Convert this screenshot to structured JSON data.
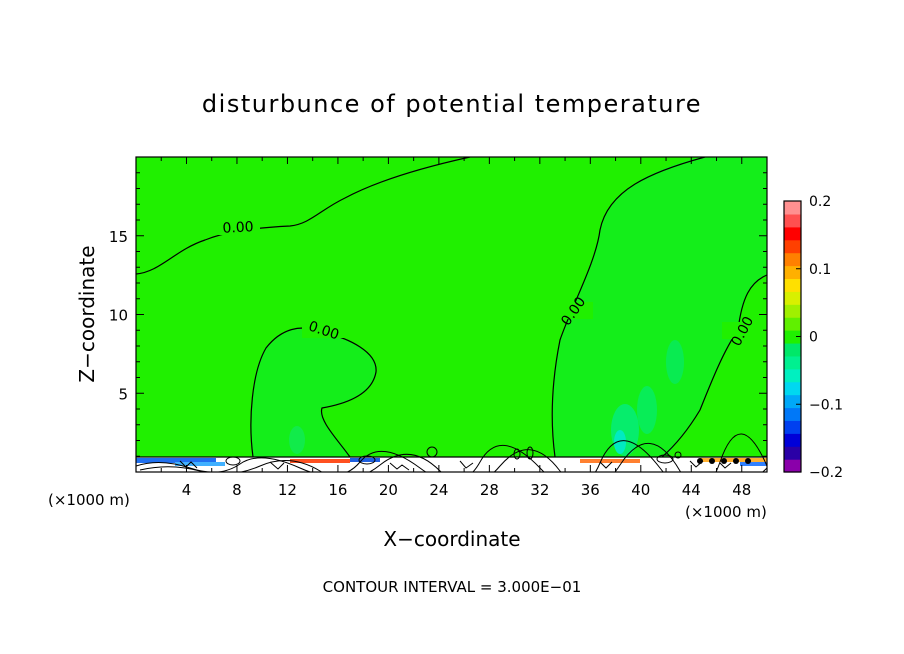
{
  "chart_data": {
    "type": "heatmap",
    "title": "disturbunce of potential temperature",
    "xlabel": "X−coordinate",
    "ylabel": "Z−coordinate",
    "x_unit_left": "(×1000 m)",
    "x_unit_right": "(×1000 m)",
    "xlim": [
      0,
      50
    ],
    "ylim": [
      0,
      20
    ],
    "x_ticks": [
      4,
      8,
      12,
      16,
      20,
      24,
      28,
      32,
      36,
      40,
      44,
      48
    ],
    "x_tick_labels": [
      "4",
      "8",
      "12",
      "16",
      "20",
      "24",
      "28",
      "32",
      "36",
      "40",
      "44",
      "48"
    ],
    "y_ticks": [
      5,
      10,
      15
    ],
    "y_tick_labels": [
      "5",
      "10",
      "15"
    ],
    "contour_labels": [
      "0.00",
      "0.00",
      "0.00",
      "0.00"
    ],
    "footnote": "CONTOUR INTERVAL = 3.000E−01",
    "colorbar": {
      "min": -0.2,
      "max": 0.2,
      "tick_values": [
        0.2,
        0.1,
        0,
        -0.1,
        -0.2
      ],
      "tick_labels": [
        "0.2",
        "0.1",
        "0",
        "−0.1",
        "−0.2"
      ],
      "colors": [
        "#8a00aa",
        "#2a00a6",
        "#0000d8",
        "#0040f0",
        "#0078f8",
        "#00a8f8",
        "#00d8f0",
        "#00f0c0",
        "#00f090",
        "#00e868",
        "#20f000",
        "#60f000",
        "#a0f000",
        "#d8f000",
        "#ffe000",
        "#ffb000",
        "#ff8000",
        "#ff4000",
        "#ff0000",
        "#ff5050",
        "#ff9090"
      ]
    },
    "background_color": "#20f000"
  }
}
